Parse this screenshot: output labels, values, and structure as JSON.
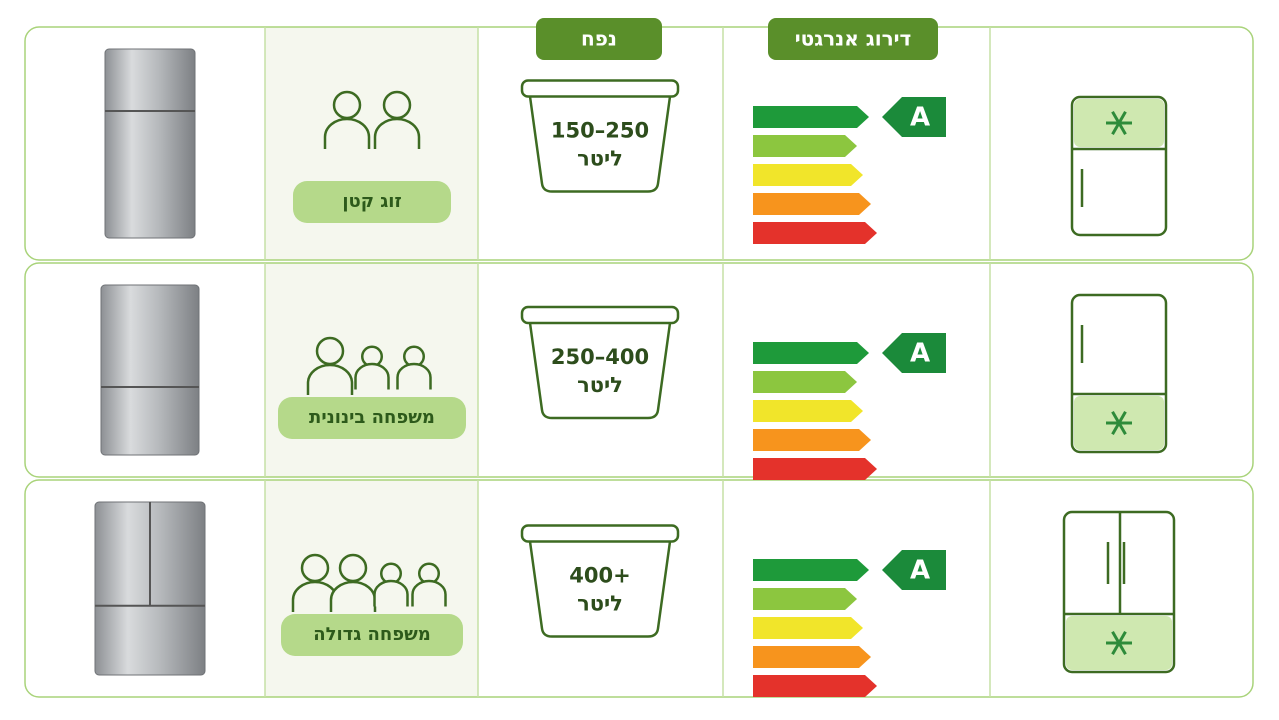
{
  "headers": {
    "capacity": "נפח",
    "energy": "דירוג אנרגטי"
  },
  "rows": [
    {
      "family": "זוג קטן",
      "capacity": "150–250",
      "unit": "ליטר",
      "rating": "A"
    },
    {
      "family": "משפחה בינונית",
      "capacity": "250–400",
      "unit": "ליטר",
      "rating": "A"
    },
    {
      "family": "משפחה גדולה",
      "capacity": "400+",
      "unit": "ליטר",
      "rating": "A"
    }
  ]
}
